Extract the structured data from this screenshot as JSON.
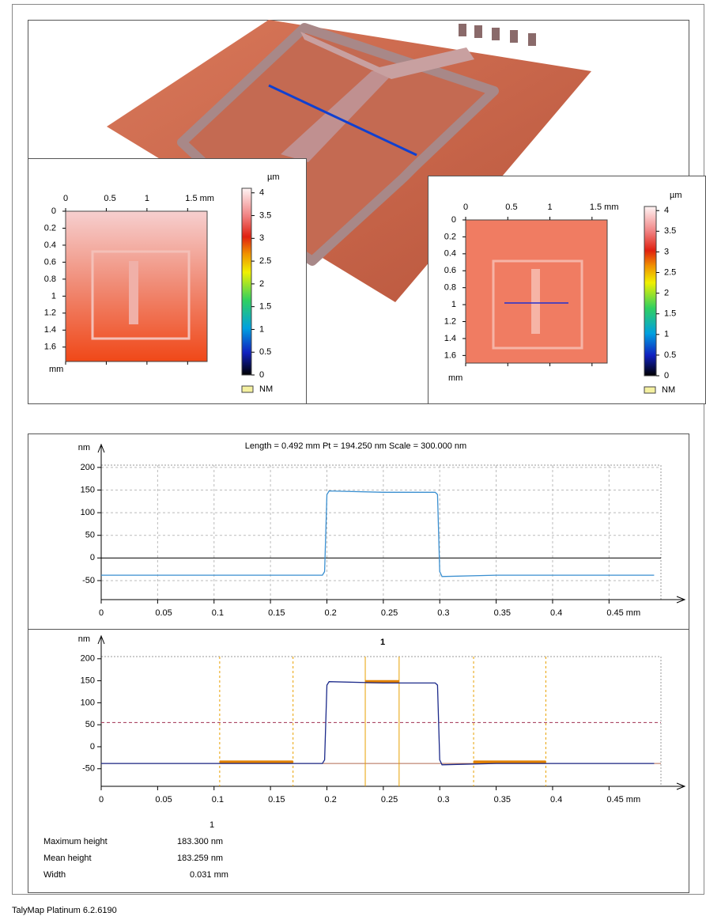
{
  "chart_data": [
    {
      "type": "heatmap",
      "xticks": [
        0,
        0.5,
        1,
        {
          "value": 1.5,
          "label": "1.5 mm"
        }
      ],
      "xlim": [
        0,
        1.74
      ],
      "yticks": [
        0,
        0.2,
        0.4,
        0.6,
        0.8,
        1,
        1.2,
        1.4,
        1.6
      ],
      "ylim": [
        0,
        1.77
      ],
      "ylabel": "mm",
      "zlabel": "µm",
      "zticks": [
        0,
        0.5,
        1,
        1.5,
        2,
        2.5,
        3,
        3.5,
        4
      ],
      "zlim": [
        0,
        4.1
      ],
      "legend": "NM"
    },
    {
      "type": "heatmap",
      "xticks": [
        0,
        0.5,
        1,
        {
          "value": 1.5,
          "label": "1.5 mm"
        }
      ],
      "xlim": [
        0,
        1.68
      ],
      "yticks": [
        0,
        0.2,
        0.4,
        0.6,
        0.8,
        1,
        1.2,
        1.4,
        1.6
      ],
      "ylim": [
        0,
        1.69
      ],
      "ylabel": "mm",
      "zlabel": "µm",
      "zticks": [
        0,
        0.5,
        1,
        1.5,
        2,
        2.5,
        3,
        3.5,
        4
      ],
      "zlim": [
        0,
        4.1
      ],
      "legend": "NM"
    },
    {
      "type": "line",
      "title": "Length = 0.492 mm  Pt = 194.250 nm  Scale = 300.000 nm",
      "ylabel": "nm",
      "xlim": [
        0,
        0.496
      ],
      "xticks": [
        0,
        0.05,
        0.1,
        0.15,
        0.2,
        0.25,
        0.3,
        0.35,
        0.4,
        {
          "value": 0.45,
          "label": "0.45 mm"
        }
      ],
      "ylim": [
        -92,
        205
      ],
      "yticks": [
        -50,
        0,
        50,
        100,
        150,
        200
      ],
      "grid": true,
      "series": [
        {
          "color": "#3a8fd0",
          "x": [
            0,
            0.196,
            0.198,
            0.2,
            0.202,
            0.25,
            0.296,
            0.298,
            0.3,
            0.302,
            0.35,
            0.49
          ],
          "values": [
            -38,
            -38,
            -30,
            140,
            148,
            145,
            145,
            140,
            -30,
            -41,
            -38,
            -38
          ]
        }
      ]
    },
    {
      "type": "line",
      "annotation": "1",
      "ylabel": "nm",
      "xlim": [
        0,
        0.496
      ],
      "xticks": [
        0,
        0.05,
        0.1,
        0.15,
        0.2,
        0.25,
        0.3,
        0.35,
        0.4,
        {
          "value": 0.45,
          "label": "0.45 mm"
        }
      ],
      "ylim": [
        -90,
        205
      ],
      "yticks": [
        -50,
        0,
        50,
        100,
        150,
        200
      ],
      "grid": false,
      "hlines": [
        {
          "y": 55,
          "color": "#a03050",
          "dash": true
        },
        {
          "y": -38,
          "color": "#b06a50",
          "dash": false
        }
      ],
      "cursors": [
        {
          "x": [
            0.105,
            0.17
          ],
          "y": -35,
          "dash": true
        },
        {
          "x": [
            0.234,
            0.264
          ],
          "y": 148,
          "dash": false
        },
        {
          "x": [
            0.33,
            0.394
          ],
          "y": -35,
          "dash": true
        }
      ],
      "series": [
        {
          "color": "#1c2a8a",
          "x": [
            0,
            0.196,
            0.198,
            0.2,
            0.202,
            0.25,
            0.296,
            0.298,
            0.3,
            0.302,
            0.35,
            0.49
          ],
          "values": [
            -38,
            -38,
            -30,
            140,
            148,
            145,
            145,
            140,
            -30,
            -41,
            -38,
            -38
          ]
        }
      ]
    }
  ],
  "results": {
    "header": "1",
    "rows": [
      [
        "Maximum height",
        "183.300 nm"
      ],
      [
        "Mean height",
        "183.259 nm"
      ],
      [
        "Width",
        "0.031 mm"
      ]
    ]
  },
  "footer": "TalyMap Platinum 6.2.6190"
}
